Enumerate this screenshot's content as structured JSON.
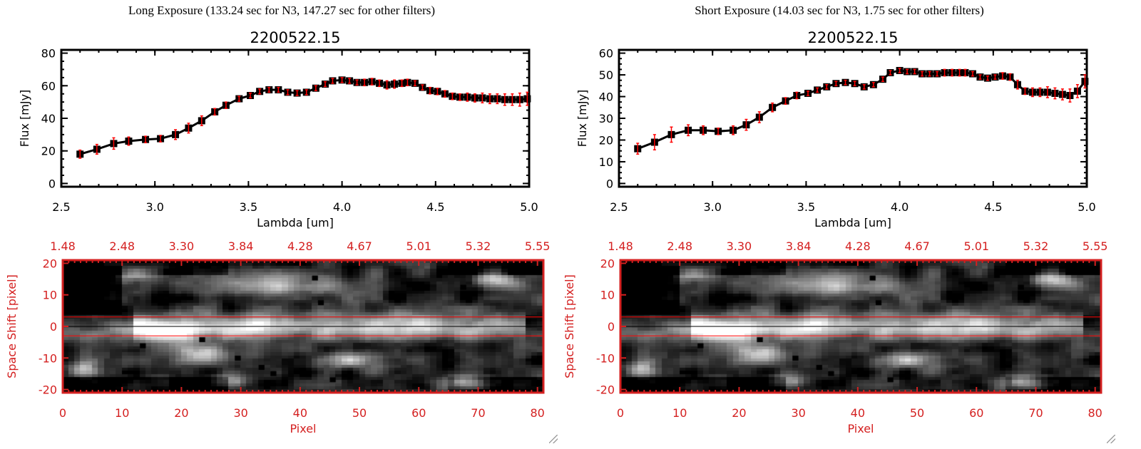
{
  "panels": [
    {
      "header": "Long Exposure (133.24 sec for N3, 147.27 sec for other filters)",
      "title": "2200522.15"
    },
    {
      "header": "Short Exposure (14.03 sec for N3, 1.75 sec for other filters)",
      "title": "2200522.15"
    }
  ],
  "chart_data": [
    {
      "type": "line",
      "title": "2200522.15",
      "xlabel": "Lambda [um]",
      "ylabel": "Flux [mJy]",
      "xlim": [
        2.5,
        5.0
      ],
      "ylim": [
        -2,
        82
      ],
      "xticks": [
        "2.5",
        "3.0",
        "3.5",
        "4.0",
        "4.5",
        "5.0"
      ],
      "yticks": [
        "0",
        "20",
        "40",
        "60",
        "80"
      ],
      "marker": "square",
      "line_color": "#000000",
      "error_color": "#ff0000",
      "x": [
        2.6,
        2.69,
        2.78,
        2.86,
        2.95,
        3.03,
        3.11,
        3.18,
        3.25,
        3.32,
        3.38,
        3.45,
        3.51,
        3.56,
        3.61,
        3.66,
        3.71,
        3.76,
        3.81,
        3.86,
        3.91,
        3.95,
        4.0,
        4.04,
        4.08,
        4.12,
        4.16,
        4.2,
        4.24,
        4.28,
        4.32,
        4.35,
        4.39,
        4.43,
        4.47,
        4.51,
        4.55,
        4.59,
        4.63,
        4.67,
        4.71,
        4.75,
        4.79,
        4.83,
        4.87,
        4.91,
        4.95,
        4.99
      ],
      "y": [
        18,
        21,
        24.5,
        26,
        27,
        27.5,
        30,
        34,
        38.5,
        44,
        48,
        52,
        54,
        56.5,
        57.5,
        57.5,
        56,
        55.5,
        56,
        58.5,
        61,
        63,
        63.5,
        63,
        62,
        62,
        62.5,
        61.5,
        60.5,
        61,
        61.5,
        62,
        61.5,
        59,
        57,
        56.5,
        55,
        53.5,
        53,
        53,
        52.5,
        52.5,
        52,
        52,
        51.5,
        51.5,
        51.5,
        52
      ],
      "err": [
        2.5,
        3,
        3.5,
        2.5,
        2,
        2,
        3,
        3,
        3,
        2,
        2,
        1.5,
        1.5,
        1.5,
        1.5,
        1.5,
        1.5,
        1.5,
        1.5,
        1.5,
        1.5,
        1.5,
        1.5,
        1.5,
        1.5,
        2,
        2,
        2,
        2.5,
        2.5,
        2,
        2,
        1.5,
        1.5,
        2,
        2,
        2,
        2,
        2,
        2.5,
        2.5,
        3,
        3,
        3,
        3.5,
        3.5,
        4,
        4
      ]
    },
    {
      "type": "line",
      "title": "2200522.15",
      "xlabel": "Lambda [um]",
      "ylabel": "Flux [mJy]",
      "xlim": [
        2.5,
        5.0
      ],
      "ylim": [
        -1.5,
        61.5
      ],
      "xticks": [
        "2.5",
        "3.0",
        "3.5",
        "4.0",
        "4.5",
        "5.0"
      ],
      "yticks": [
        "0",
        "10",
        "20",
        "30",
        "40",
        "50",
        "60"
      ],
      "marker": "square",
      "line_color": "#000000",
      "error_color": "#ff0000",
      "x": [
        2.6,
        2.69,
        2.78,
        2.87,
        2.95,
        3.03,
        3.11,
        3.18,
        3.25,
        3.32,
        3.39,
        3.45,
        3.51,
        3.56,
        3.61,
        3.66,
        3.71,
        3.76,
        3.81,
        3.86,
        3.91,
        3.95,
        4.0,
        4.04,
        4.08,
        4.12,
        4.16,
        4.2,
        4.24,
        4.28,
        4.32,
        4.35,
        4.39,
        4.43,
        4.47,
        4.51,
        4.55,
        4.59,
        4.63,
        4.67,
        4.71,
        4.75,
        4.79,
        4.83,
        4.87,
        4.91,
        4.95,
        4.99
      ],
      "y": [
        16,
        19,
        22.5,
        24.5,
        24.5,
        24,
        24.5,
        27,
        30.5,
        35,
        38,
        40.5,
        41.5,
        43,
        44.5,
        46,
        46.5,
        46,
        44.5,
        45.5,
        48,
        51,
        52,
        51.5,
        51.5,
        50.5,
        50.5,
        50.5,
        51,
        51,
        51,
        51,
        50.5,
        49,
        48.5,
        49,
        49.5,
        49,
        45.5,
        42.5,
        42,
        42,
        42,
        41.5,
        41,
        40.5,
        42.5,
        47
      ],
      "err": [
        2.5,
        3.5,
        3.5,
        2.5,
        2,
        1.5,
        2,
        2.5,
        2.5,
        2,
        1.5,
        1.5,
        1,
        1,
        1,
        1,
        1,
        1,
        1,
        1,
        1,
        1,
        1,
        1,
        1,
        1,
        1,
        1,
        1.5,
        1.5,
        1.5,
        1.5,
        1,
        1,
        1,
        1,
        1.5,
        1.5,
        2,
        1.5,
        2,
        2,
        2.5,
        2.5,
        2.5,
        3,
        3,
        3
      ]
    },
    {
      "type": "heatmap",
      "colormap": "grayscale",
      "xlabel": "Pixel",
      "ylabel": "Space Shift [pixel]",
      "xlim": [
        0,
        81
      ],
      "ylim": [
        -21,
        21
      ],
      "xticks": [
        "0",
        "10",
        "20",
        "30",
        "40",
        "50",
        "60",
        "70",
        "80"
      ],
      "yticks": [
        "-20",
        "-10",
        "0",
        "10",
        "20"
      ],
      "top_xticks": [
        "1.48",
        "2.48",
        "3.30",
        "3.84",
        "4.28",
        "4.67",
        "5.01",
        "5.32",
        "5.55"
      ],
      "aperture_lines": [
        -3,
        3
      ],
      "center_line": 0,
      "axis_color": "#d42020"
    }
  ]
}
